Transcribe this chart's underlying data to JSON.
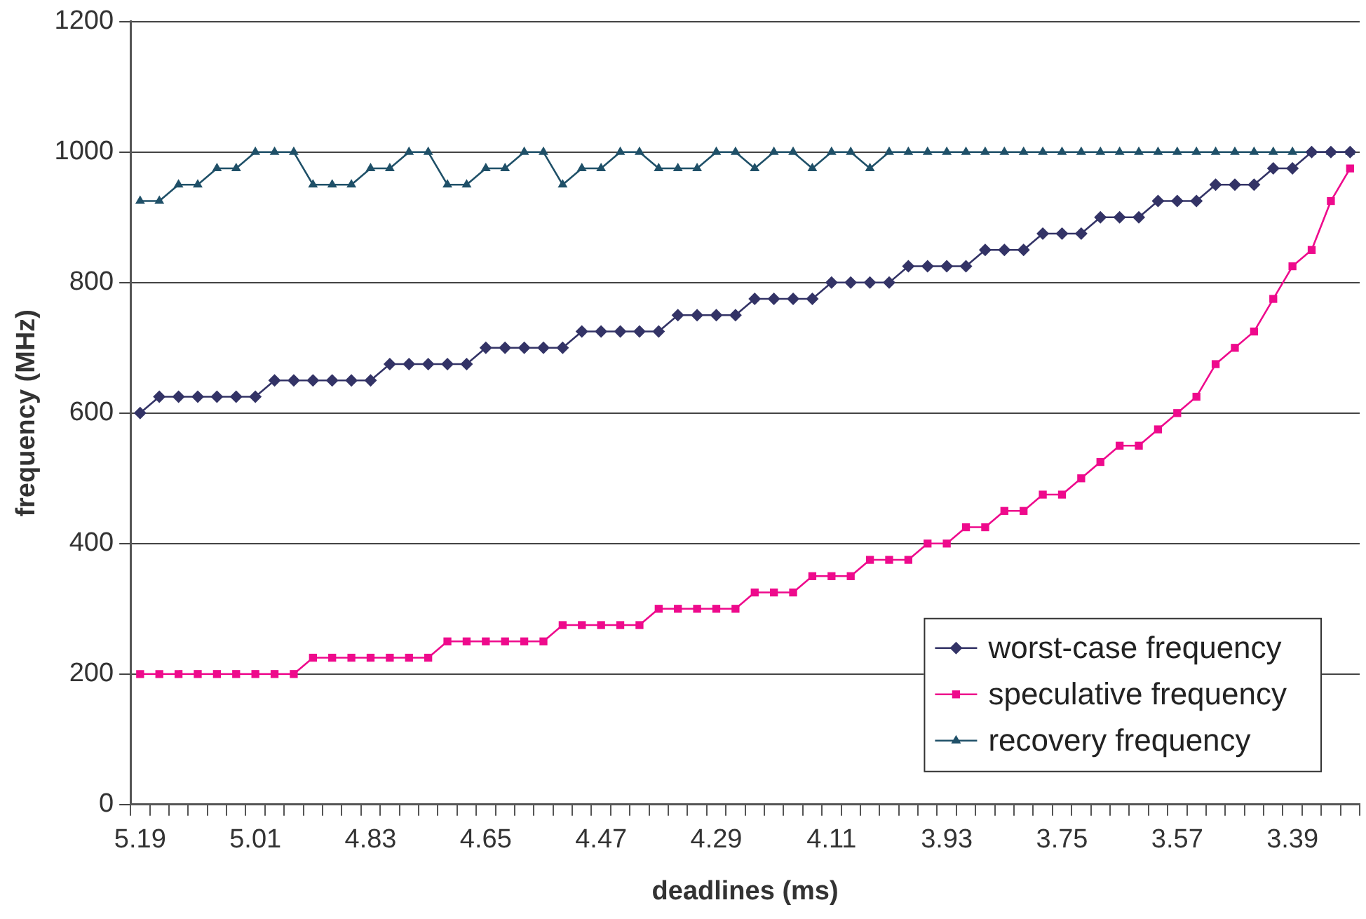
{
  "chart_data": {
    "type": "line",
    "xlabel": "deadlines (ms)",
    "ylabel": "frequency (MHz)",
    "categories": [
      "5.19",
      null,
      null,
      null,
      null,
      null,
      "5.01",
      null,
      null,
      null,
      null,
      null,
      "4.83",
      null,
      null,
      null,
      null,
      null,
      "4.65",
      null,
      null,
      null,
      null,
      null,
      "4.47",
      null,
      null,
      null,
      null,
      null,
      "4.29",
      null,
      null,
      null,
      null,
      null,
      "4.11",
      null,
      null,
      null,
      null,
      null,
      "3.93",
      null,
      null,
      null,
      null,
      null,
      "3.75",
      null,
      null,
      null,
      null,
      null,
      "3.57",
      null,
      null,
      null,
      null,
      null,
      "3.39",
      null,
      null,
      null
    ],
    "series": [
      {
        "name": "worst-case frequency",
        "color": "#333366",
        "marker": "diamond",
        "values": [
          600,
          625,
          625,
          625,
          625,
          625,
          625,
          650,
          650,
          650,
          650,
          650,
          650,
          675,
          675,
          675,
          675,
          675,
          700,
          700,
          700,
          700,
          700,
          725,
          725,
          725,
          725,
          725,
          750,
          750,
          750,
          750,
          775,
          775,
          775,
          775,
          800,
          800,
          800,
          800,
          825,
          825,
          825,
          825,
          850,
          850,
          850,
          875,
          875,
          875,
          900,
          900,
          900,
          925,
          925,
          925,
          950,
          950,
          950,
          975,
          975,
          1000,
          1000,
          1000
        ]
      },
      {
        "name": "speculative frequency",
        "color": "#ee0a8c",
        "marker": "square",
        "values": [
          200,
          200,
          200,
          200,
          200,
          200,
          200,
          200,
          200,
          225,
          225,
          225,
          225,
          225,
          225,
          225,
          250,
          250,
          250,
          250,
          250,
          250,
          275,
          275,
          275,
          275,
          275,
          300,
          300,
          300,
          300,
          300,
          325,
          325,
          325,
          350,
          350,
          350,
          375,
          375,
          375,
          400,
          400,
          425,
          425,
          450,
          450,
          475,
          475,
          500,
          525,
          550,
          550,
          575,
          600,
          625,
          675,
          700,
          725,
          775,
          825,
          850,
          925,
          975
        ]
      },
      {
        "name": "recovery frequency",
        "color": "#1f5068",
        "marker": "triangle",
        "values": [
          925,
          925,
          950,
          950,
          975,
          975,
          1000,
          1000,
          1000,
          950,
          950,
          950,
          975,
          975,
          1000,
          1000,
          950,
          950,
          975,
          975,
          1000,
          1000,
          950,
          975,
          975,
          1000,
          1000,
          975,
          975,
          975,
          1000,
          1000,
          975,
          1000,
          1000,
          975,
          1000,
          1000,
          975,
          1000,
          1000,
          1000,
          1000,
          1000,
          1000,
          1000,
          1000,
          1000,
          1000,
          1000,
          1000,
          1000,
          1000,
          1000,
          1000,
          1000,
          1000,
          1000,
          1000,
          1000,
          1000,
          1000,
          1000,
          1000
        ]
      }
    ],
    "ylim": [
      0,
      1200
    ],
    "yticks": [
      0,
      200,
      400,
      600,
      800,
      1000,
      1200
    ],
    "grid": "y",
    "legend": "bottom right",
    "line_style": "solid"
  }
}
